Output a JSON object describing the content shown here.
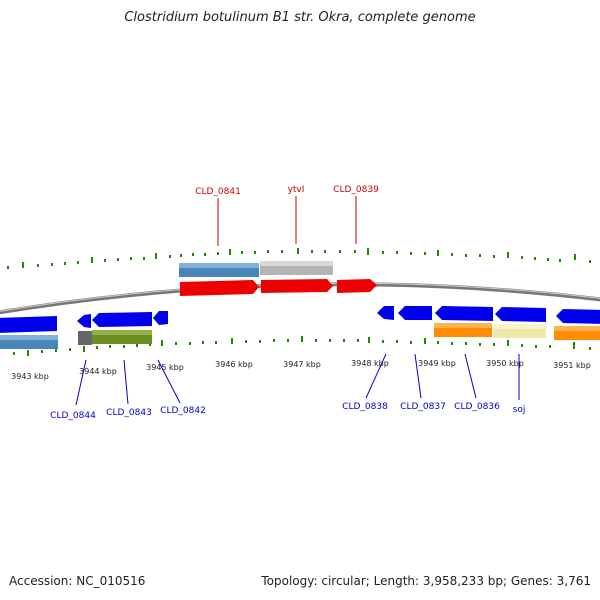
{
  "title": "Clostridium botulinum B1 str. Okra, complete genome",
  "footer": {
    "accession": "Accession: NC_010516",
    "summary": "Topology: circular; Length: 3,958,233 bp; Genes: 3,761"
  },
  "colors": {
    "plus_label": "#cc0000",
    "minus_label": "#0000cc",
    "tick": "#228800",
    "backbone": "#888888",
    "cds_plus": "#ee0000",
    "cds_minus": "#0000ee"
  },
  "scale_ticks": [
    "3943 kbp",
    "3944 kbp",
    "3945 kbp",
    "3946 kbp",
    "3947 kbp",
    "3948 kbp",
    "3949 kbp",
    "3950 kbp",
    "3951 kbp"
  ],
  "plus_gene_labels": [
    "CLD_0841",
    "ytvI",
    "CLD_0839"
  ],
  "minus_gene_labels": [
    "CLD_0844",
    "CLD_0843",
    "CLD_0842",
    "CLD_0838",
    "CLD_0837",
    "CLD_0836",
    "soj"
  ]
}
